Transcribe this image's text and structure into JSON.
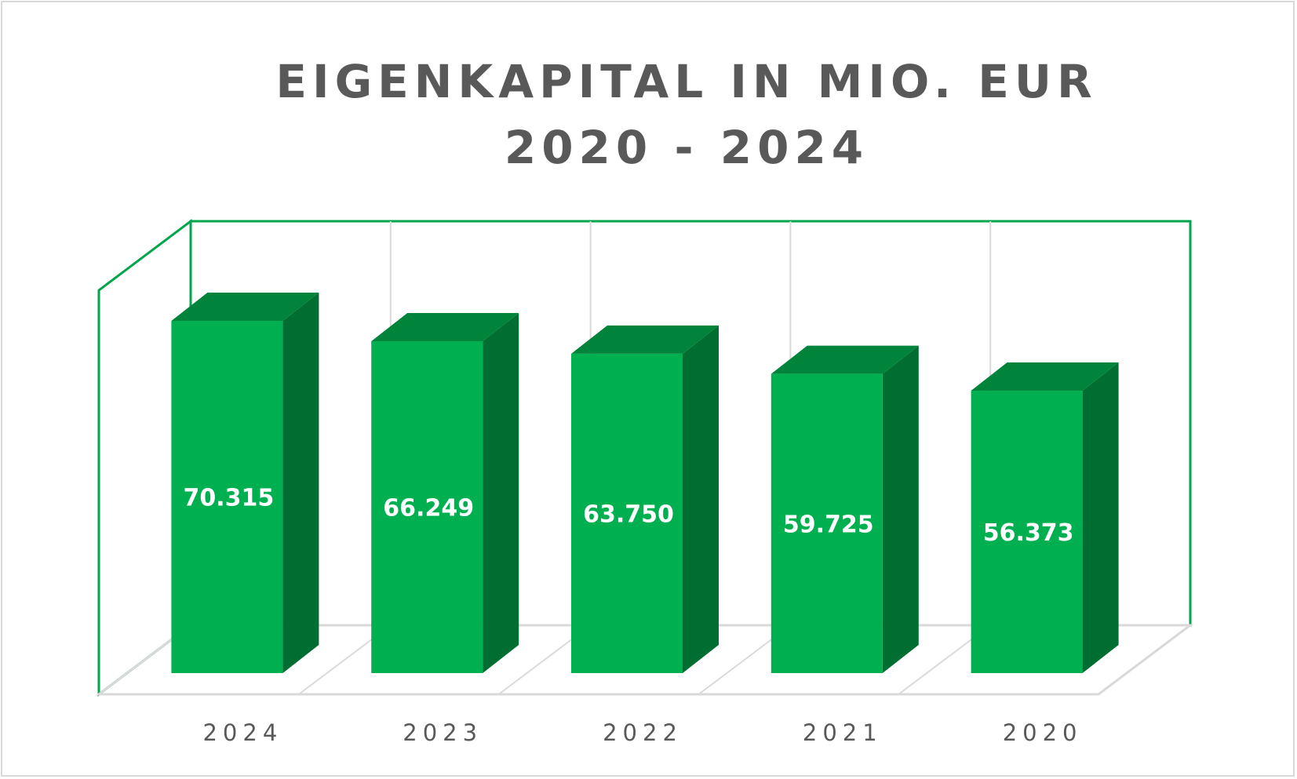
{
  "chart_data": {
    "type": "bar",
    "title": "EIGENKAPITAL IN MIO. EUR 2020 - 2024",
    "categories": [
      "2024",
      "2023",
      "2022",
      "2021",
      "2020"
    ],
    "values": [
      70315,
      66249,
      63750,
      59725,
      56373
    ],
    "data_labels": [
      "70.315",
      "66.249",
      "63.750",
      "59.725",
      "56.373"
    ],
    "three_d": true,
    "grid": true,
    "legend": "none",
    "colors": {
      "bar_front": "#00b050",
      "bar_top": "#00833b",
      "bar_side": "#006e30",
      "wall_border": "#00a64c",
      "gridline": "#d9d9d9"
    }
  }
}
